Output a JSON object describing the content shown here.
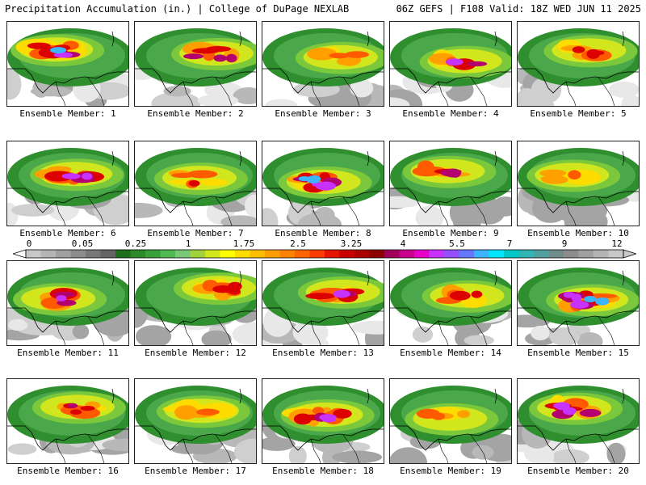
{
  "header": {
    "left": "Precipitation Accumulation (in.) | College of DuPage NEXLAB",
    "right": "06Z GEFS | F108 Valid: 18Z WED JUN 11 2025"
  },
  "colorbar": {
    "labels": [
      "0",
      "0.05",
      "0.25",
      "1",
      "1.75",
      "2.5",
      "3.25",
      "4",
      "5.5",
      "7",
      "9",
      "12"
    ],
    "colors": [
      "#c8c8c8",
      "#b4b4b4",
      "#a0a0a0",
      "#8c8c8c",
      "#787878",
      "#646464",
      "#1e6e1e",
      "#2a8a2a",
      "#38a038",
      "#50b850",
      "#78c878",
      "#a0d23c",
      "#d2e61e",
      "#ffff00",
      "#ffdc00",
      "#ffbe00",
      "#ffa000",
      "#ff8200",
      "#ff6400",
      "#ff3c00",
      "#e61400",
      "#c80000",
      "#aa0000",
      "#8c0000",
      "#a0005a",
      "#c8008c",
      "#e600c8",
      "#c832ff",
      "#9650ff",
      "#6478ff",
      "#3cb4ff",
      "#00e6ff",
      "#00c8c8",
      "#32b4b4",
      "#50a0a0",
      "#6e8c8c",
      "#8c8c8c",
      "#a0a0a0",
      "#b4b4b4",
      "#c8c8c8"
    ]
  },
  "members": [
    {
      "caption": "Ensemble Member: 1"
    },
    {
      "caption": "Ensemble Member: 2"
    },
    {
      "caption": "Ensemble Member: 3"
    },
    {
      "caption": "Ensemble Member: 4"
    },
    {
      "caption": "Ensemble Member: 5"
    },
    {
      "caption": "Ensemble Member: 6"
    },
    {
      "caption": "Ensemble Member: 7"
    },
    {
      "caption": "Ensemble Member: 8"
    },
    {
      "caption": "Ensemble Member: 9"
    },
    {
      "caption": "Ensemble Member: 10"
    },
    {
      "caption": "Ensemble Member: 11"
    },
    {
      "caption": "Ensemble Member: 12"
    },
    {
      "caption": "Ensemble Member: 13"
    },
    {
      "caption": "Ensemble Member: 14"
    },
    {
      "caption": "Ensemble Member: 15"
    },
    {
      "caption": "Ensemble Member: 16"
    },
    {
      "caption": "Ensemble Member: 17"
    },
    {
      "caption": "Ensemble Member: 18"
    },
    {
      "caption": "Ensemble Member: 19"
    },
    {
      "caption": "Ensemble Member: 20"
    }
  ]
}
